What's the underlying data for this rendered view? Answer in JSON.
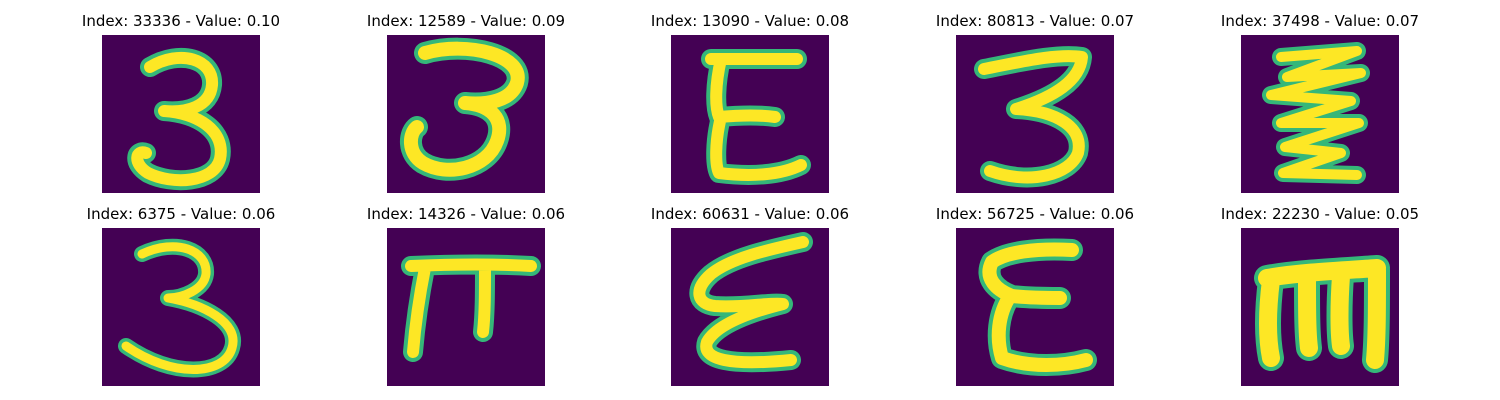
{
  "figure": {
    "background": "#440154",
    "stroke_color": "#fde725",
    "edge_color": "#35b779",
    "items": [
      {
        "title": "Index: 33336 - Value: 0.10",
        "glyph": "3"
      },
      {
        "title": "Index: 12589 - Value: 0.09",
        "glyph": "3"
      },
      {
        "title": "Index: 13090 - Value: 0.08",
        "glyph": "E"
      },
      {
        "title": "Index: 80813 - Value: 0.07",
        "glyph": "3"
      },
      {
        "title": "Index: 37498 - Value: 0.07",
        "glyph": "zigzag-3"
      },
      {
        "title": "Index: 6375 - Value: 0.06",
        "glyph": "3"
      },
      {
        "title": "Index: 14326 - Value: 0.06",
        "glyph": "pi"
      },
      {
        "title": "Index: 60631 - Value: 0.06",
        "glyph": "epsilon"
      },
      {
        "title": "Index: 56725 - Value: 0.06",
        "glyph": "E"
      },
      {
        "title": "Index: 22230 - Value: 0.05",
        "glyph": "m"
      }
    ]
  }
}
